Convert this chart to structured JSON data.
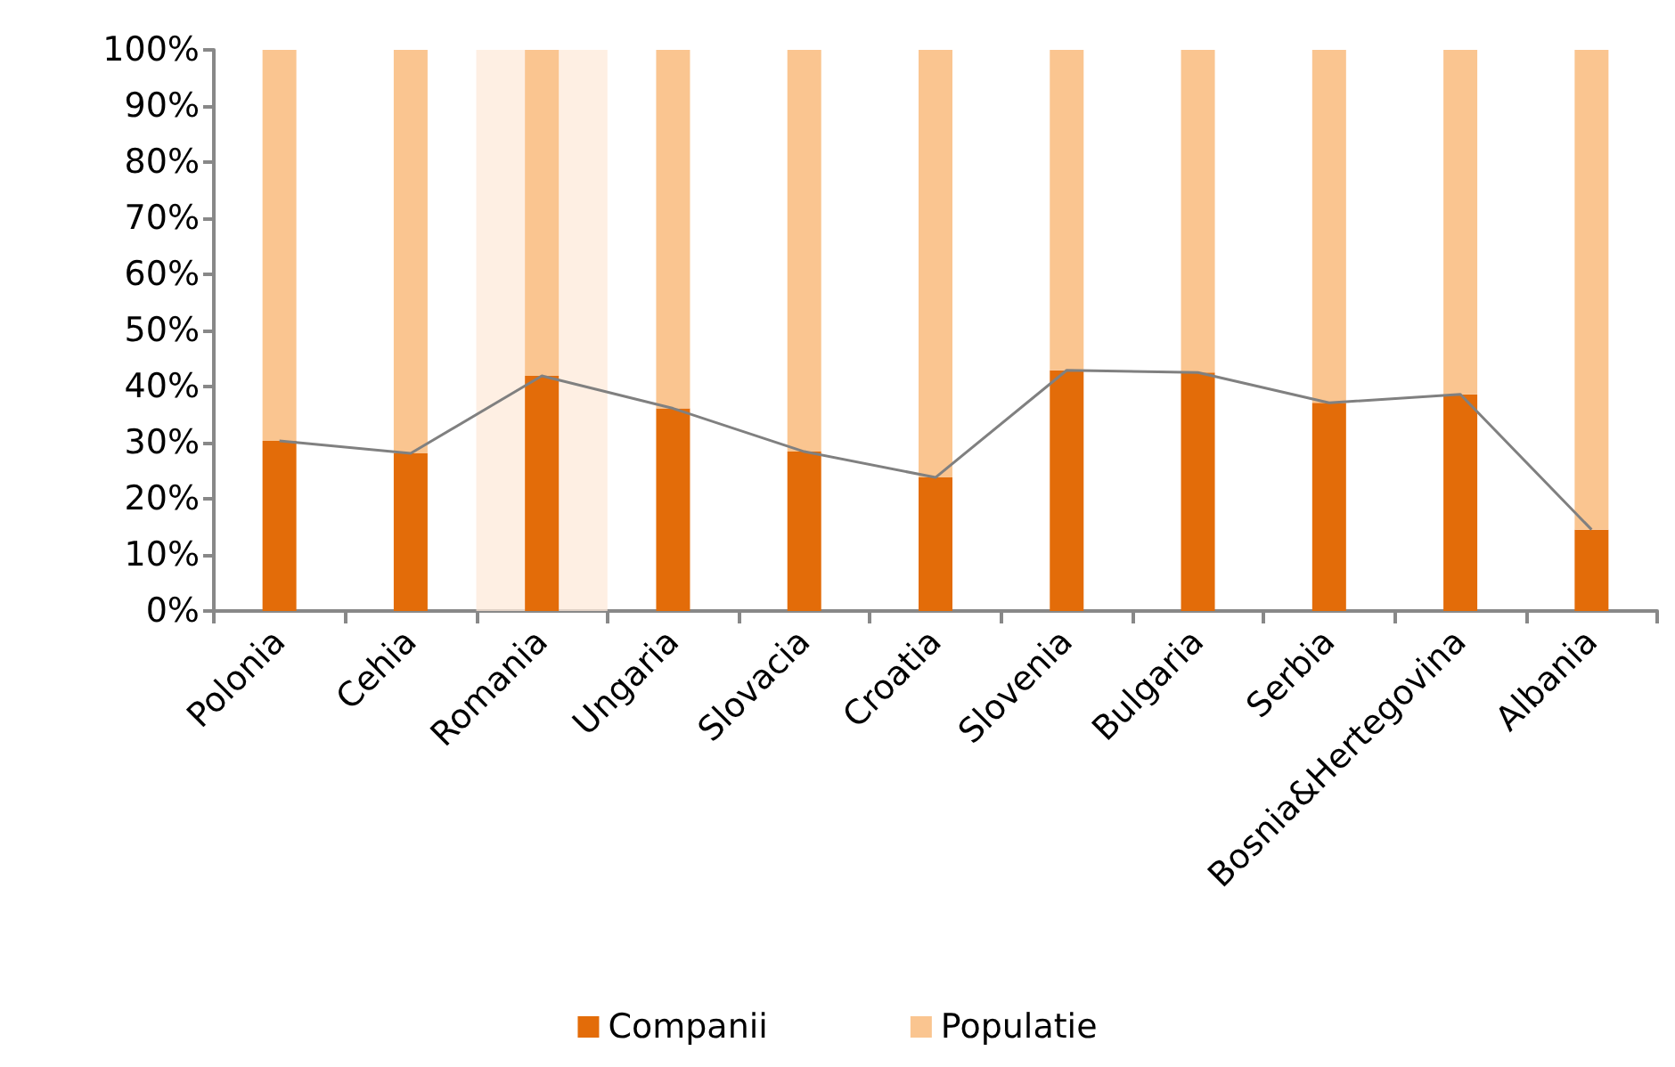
{
  "chart_data": {
    "type": "bar",
    "stacked": true,
    "categories": [
      "Polonia",
      "Cehia",
      "Romania",
      "Ungaria",
      "Slovacia",
      "Croatia",
      "Slovenia",
      "Bulgaria",
      "Serbia",
      "Bosnia&Hertegovina",
      "Albania"
    ],
    "series": [
      {
        "name": "Companii",
        "color": "#e36c09",
        "values": [
          30.3,
          28.1,
          41.9,
          36.1,
          28.4,
          23.8,
          42.9,
          42.5,
          37.1,
          38.6,
          14.5
        ]
      },
      {
        "name": "Populatie",
        "color": "#fac590",
        "values": [
          69.7,
          71.9,
          58.1,
          63.9,
          71.6,
          76.2,
          57.1,
          57.5,
          62.9,
          61.4,
          85.5
        ]
      },
      {
        "type": "line",
        "color": "#808080",
        "marker": "none",
        "values": [
          30.3,
          28.1,
          41.9,
          36.1,
          28.4,
          23.8,
          42.9,
          42.5,
          37.1,
          38.6,
          14.5
        ]
      }
    ],
    "bands": [
      {
        "axis": "x",
        "from": "Romania",
        "to": "Romania",
        "color": "#fde9d9"
      }
    ],
    "ylim": [
      0,
      100
    ],
    "yticks": [
      {
        "value": 0,
        "label": "0%"
      },
      {
        "value": 10,
        "label": "10%"
      },
      {
        "value": 20,
        "label": "20%"
      },
      {
        "value": 30,
        "label": "30%"
      },
      {
        "value": 40,
        "label": "40%"
      },
      {
        "value": 50,
        "label": "50%"
      },
      {
        "value": 60,
        "label": "60%"
      },
      {
        "value": 70,
        "label": "70%"
      },
      {
        "value": 80,
        "label": "80%"
      },
      {
        "value": 90,
        "label": "90%"
      },
      {
        "value": 100,
        "label": "100%"
      }
    ],
    "grid": false,
    "legend": "bottom"
  }
}
